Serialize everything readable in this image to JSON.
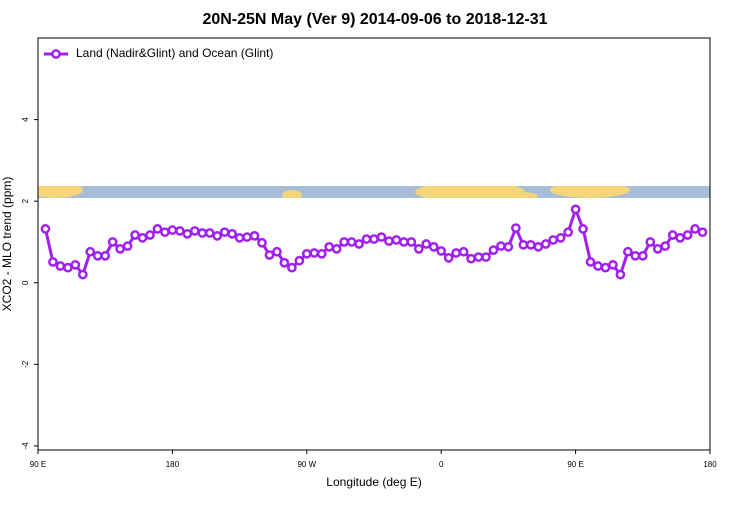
{
  "chart_data": {
    "type": "line",
    "title": "20N-25N May (Ver 9)   2014-09-06 to 2018-12-31",
    "x_label": "Longitude (deg E)",
    "y_label": "XCO2 - MLO trend (ppm)",
    "xlim": [
      90,
      540
    ],
    "ylim": [
      -4.1,
      6
    ],
    "xticks": [
      {
        "value": 90,
        "label": "90 E"
      },
      {
        "value": 180,
        "label": "180"
      },
      {
        "value": 270,
        "label": "90 W"
      },
      {
        "value": 360,
        "label": "0"
      },
      {
        "value": 450,
        "label": "90 E"
      },
      {
        "value": 540,
        "label": "180"
      }
    ],
    "yticks": [
      -4,
      -2,
      0,
      2,
      4
    ],
    "legend": "top-left",
    "series": [
      {
        "name": "Land (Nadir&Glint) and Ocean (Glint)",
        "color": "#a020f0",
        "x": [
          95,
          100,
          105,
          110,
          115,
          120,
          125,
          130,
          135,
          140,
          145,
          150,
          155,
          160,
          165,
          170,
          175,
          180,
          185,
          190,
          195,
          200,
          205,
          210,
          215,
          220,
          225,
          230,
          235,
          240,
          245,
          250,
          255,
          260,
          265,
          270,
          275,
          280,
          285,
          290,
          295,
          300,
          305,
          310,
          315,
          320,
          325,
          330,
          335,
          340,
          345,
          350,
          355,
          360,
          365,
          370,
          375,
          380,
          385,
          390,
          395,
          400,
          405,
          410,
          415,
          420,
          425,
          430,
          435,
          440,
          445,
          450,
          455,
          460,
          465,
          470,
          475,
          480,
          485,
          490,
          495,
          500,
          505,
          510,
          515,
          520,
          525,
          530,
          535
        ],
        "values": [
          1.32,
          0.51,
          0.41,
          0.37,
          0.44,
          0.2,
          0.76,
          0.66,
          0.66,
          1.0,
          0.83,
          0.9,
          1.17,
          1.1,
          1.17,
          1.32,
          1.24,
          1.29,
          1.27,
          1.2,
          1.27,
          1.22,
          1.22,
          1.15,
          1.24,
          1.2,
          1.1,
          1.12,
          1.15,
          0.98,
          0.68,
          0.76,
          0.49,
          0.37,
          0.54,
          0.71,
          0.73,
          0.71,
          0.88,
          0.83,
          1.0,
          1.0,
          0.95,
          1.07,
          1.07,
          1.12,
          1.02,
          1.05,
          1.0,
          1.0,
          0.83,
          0.95,
          0.88,
          0.78,
          0.61,
          0.73,
          0.76,
          0.59,
          0.63,
          0.63,
          0.8,
          0.9,
          0.88,
          1.34,
          0.93,
          0.93,
          0.88,
          0.95,
          1.05,
          1.1,
          1.24,
          1.8,
          1.32,
          0.51,
          0.41,
          0.37,
          0.44,
          0.2,
          0.76,
          0.66,
          0.66,
          1.0,
          0.83,
          0.9,
          1.17,
          1.1,
          1.17,
          1.32,
          1.24
        ]
      }
    ]
  }
}
